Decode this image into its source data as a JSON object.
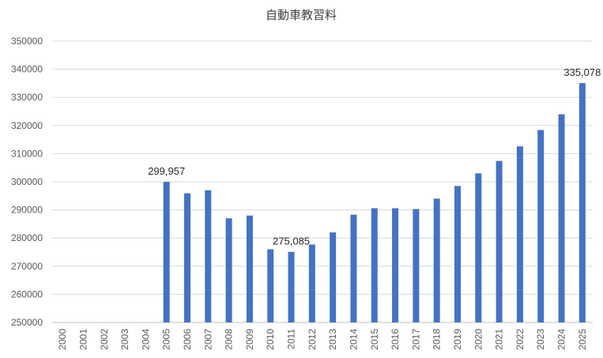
{
  "chart_data": {
    "type": "bar",
    "title": "自動車教習料",
    "xlabel": "",
    "ylabel": "",
    "ylim": [
      250000,
      350000
    ],
    "y_ticks": [
      "250000",
      "260000",
      "270000",
      "280000",
      "290000",
      "300000",
      "310000",
      "320000",
      "330000",
      "340000",
      "350000"
    ],
    "grid": true,
    "legend": "none",
    "bar_color": "#4472c4",
    "categories": [
      "2000",
      "2001",
      "2002",
      "2003",
      "2004",
      "2005",
      "2006",
      "2007",
      "2008",
      "2009",
      "2010",
      "2011",
      "2012",
      "2013",
      "2014",
      "2015",
      "2016",
      "2017",
      "2018",
      "2019",
      "2020",
      "2021",
      "2022",
      "2023",
      "2024",
      "2025"
    ],
    "values": [
      null,
      null,
      null,
      null,
      null,
      299957,
      295900,
      297000,
      287000,
      288000,
      276000,
      275085,
      277700,
      282000,
      288300,
      290600,
      290600,
      290300,
      294000,
      298500,
      303000,
      307400,
      312600,
      318400,
      324000,
      335078
    ],
    "data_labels": [
      {
        "category": "2005",
        "text": "299,957"
      },
      {
        "category": "2011",
        "text": "275,085"
      },
      {
        "category": "2025",
        "text": "335,078"
      }
    ]
  }
}
